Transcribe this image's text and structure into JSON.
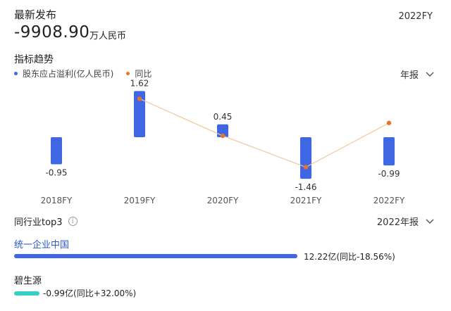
{
  "header": {
    "latest_label": "最新发布",
    "period": "2022FY",
    "value": "-9908.90",
    "unit": "万人民币"
  },
  "trend": {
    "title": "指标趋势",
    "legend_profit": "股东应占溢利(亿人民币)",
    "legend_yoy": "同比",
    "period_select": "年报",
    "colors": {
      "bar": "#3f67e3",
      "line": "#f0c89a",
      "dot": "#e8742a"
    }
  },
  "chart_data": {
    "type": "bar",
    "categories": [
      "2018FY",
      "2019FY",
      "2020FY",
      "2021FY",
      "2022FY"
    ],
    "series": [
      {
        "name": "股东应占溢利(亿人民币)",
        "values": [
          -0.95,
          1.62,
          0.45,
          -1.46,
          -0.99
        ],
        "labels": [
          "-0.95",
          "1.62",
          "0.45",
          "-1.46",
          "-0.99"
        ]
      },
      {
        "name": "同比",
        "values": [
          null,
          1.35,
          0.05,
          -1.05,
          0.5
        ]
      }
    ],
    "ylim": [
      -1.7,
      1.8
    ]
  },
  "peers": {
    "title": "同行业top3",
    "info_icon": "info-icon",
    "period_select": "2022年报",
    "items": [
      {
        "name": "统一企业中国",
        "value": "12.22亿(同比-18.56%)",
        "share": 1.0
      },
      {
        "name": "碧生源",
        "value": "-0.99亿(同比+32.00%)",
        "share": 0.09
      }
    ]
  }
}
